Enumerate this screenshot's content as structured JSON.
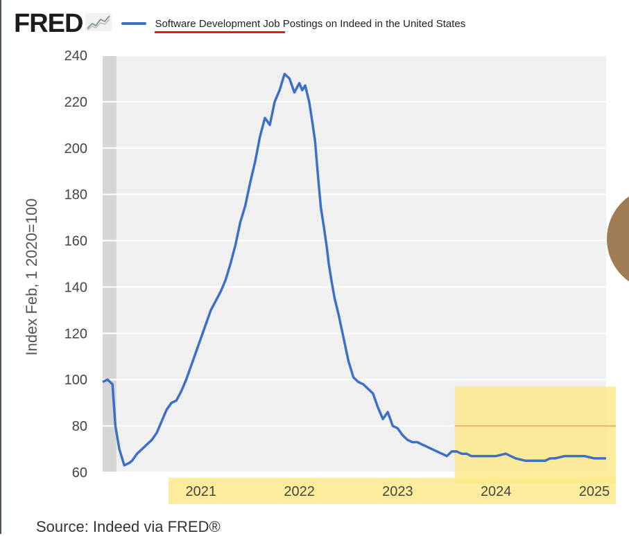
{
  "brand": {
    "logo": "FRED",
    "logo_icon": "line-chart-icon"
  },
  "legend": {
    "series_name": "Software Development Job Postings on Indeed in the United States",
    "series_color": "#3d6fc7"
  },
  "source_text": "Source: Indeed via FRED®",
  "highlight_color": "#fde98a",
  "annotation_line_color": "#f3a98a",
  "chart_data": {
    "type": "line",
    "ylabel": "Index Feb, 1 2020=100",
    "ylim": [
      60,
      240
    ],
    "yticks": [
      60,
      80,
      100,
      120,
      140,
      160,
      180,
      200,
      220,
      240
    ],
    "xlim": [
      2020.0,
      2025.12
    ],
    "xticks": [
      2021,
      2022,
      2023,
      2024,
      2025
    ],
    "xtick_labels": [
      "2021",
      "2022",
      "2023",
      "2024",
      "2025"
    ],
    "recession_shading": [
      2020.0,
      2020.14
    ],
    "highlight_region": {
      "x": [
        2023.58,
        2025.12
      ],
      "y": [
        60,
        97
      ]
    },
    "reference_line_y": 80,
    "grid": true,
    "series": [
      {
        "name": "Software Development Job Postings on Indeed in the United States",
        "x": [
          2020.0,
          2020.05,
          2020.1,
          2020.13,
          2020.17,
          2020.22,
          2020.27,
          2020.3,
          2020.35,
          2020.4,
          2020.45,
          2020.5,
          2020.55,
          2020.6,
          2020.65,
          2020.7,
          2020.75,
          2020.8,
          2020.85,
          2020.9,
          2020.95,
          2021.0,
          2021.05,
          2021.1,
          2021.15,
          2021.2,
          2021.25,
          2021.3,
          2021.35,
          2021.4,
          2021.45,
          2021.5,
          2021.55,
          2021.6,
          2021.65,
          2021.7,
          2021.75,
          2021.8,
          2021.85,
          2021.9,
          2021.95,
          2022.0,
          2022.03,
          2022.06,
          2022.1,
          2022.13,
          2022.16,
          2022.18,
          2022.2,
          2022.22,
          2022.25,
          2022.28,
          2022.3,
          2022.33,
          2022.36,
          2022.4,
          2022.45,
          2022.5,
          2022.55,
          2022.6,
          2022.65,
          2022.7,
          2022.75,
          2022.8,
          2022.85,
          2022.9,
          2022.95,
          2023.0,
          2023.05,
          2023.1,
          2023.15,
          2023.2,
          2023.25,
          2023.3,
          2023.35,
          2023.4,
          2023.45,
          2023.5,
          2023.55,
          2023.6,
          2023.65,
          2023.7,
          2023.75,
          2023.8,
          2023.85,
          2023.9,
          2023.95,
          2024.0,
          2024.1,
          2024.2,
          2024.3,
          2024.4,
          2024.45,
          2024.5,
          2024.55,
          2024.6,
          2024.7,
          2024.8,
          2024.9,
          2025.0,
          2025.05,
          2025.08,
          2025.12
        ],
        "y": [
          99,
          100,
          98,
          80,
          70,
          63,
          64,
          65,
          68,
          70,
          72,
          74,
          77,
          82,
          87,
          90,
          91,
          95,
          100,
          106,
          112,
          118,
          124,
          130,
          134,
          138,
          143,
          150,
          158,
          168,
          175,
          185,
          194,
          205,
          213,
          210,
          220,
          225,
          232,
          230,
          224,
          228,
          225,
          227,
          220,
          212,
          203,
          193,
          183,
          174,
          166,
          157,
          150,
          142,
          135,
          128,
          118,
          108,
          101,
          99,
          98,
          96,
          94,
          88,
          83,
          86,
          80,
          79,
          76,
          74,
          73,
          73,
          72,
          71,
          70,
          69,
          68,
          67,
          69,
          69,
          68,
          68,
          67,
          67,
          67,
          67,
          67,
          67,
          68,
          66,
          65,
          65,
          65,
          65,
          66,
          66,
          67,
          67,
          67,
          66,
          66,
          66,
          66
        ],
        "color": "#3d6fc7"
      }
    ]
  }
}
